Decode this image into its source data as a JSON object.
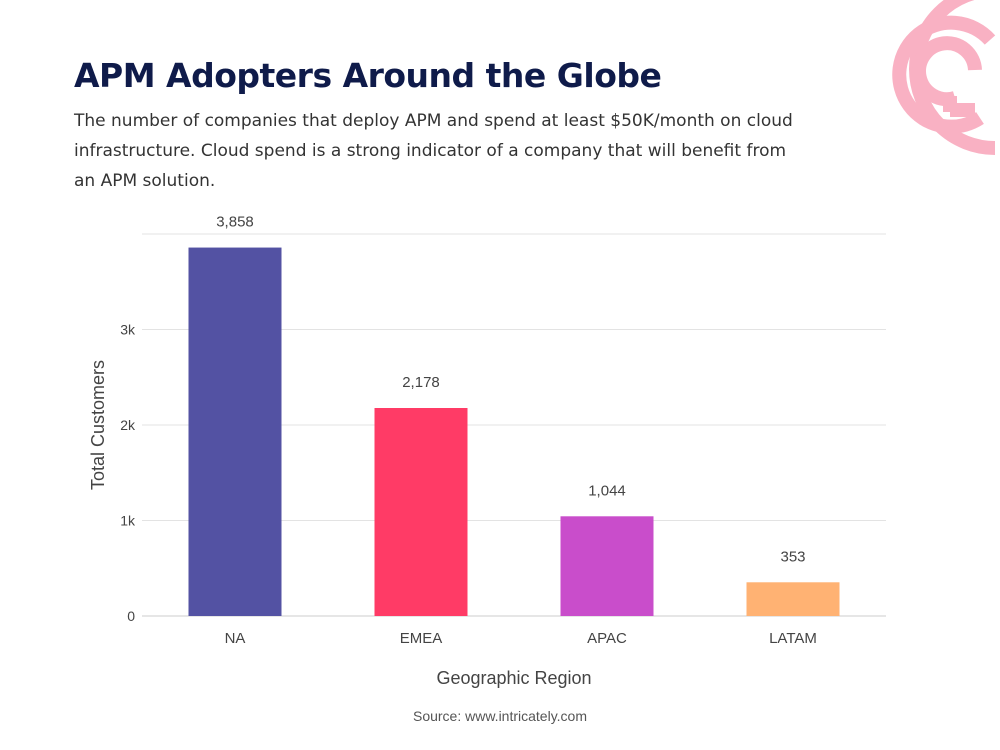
{
  "header": {
    "title": "APM Adopters Around the Globe",
    "subtitle": "The number of companies that deploy APM and spend at least $50K/month on cloud infrastructure. Cloud spend is a strong indicator of a company that will benefit from an APM solution."
  },
  "logo": {
    "icon": "pink-concentric-circles-logo",
    "color": "#f9b1c3"
  },
  "footer": {
    "source": "Source: www.intricately.com"
  },
  "chart_data": {
    "type": "bar",
    "title": "APM Adopters Around the Globe",
    "xlabel": "Geographic Region",
    "ylabel": "Total Customers",
    "ylim": [
      0,
      4000
    ],
    "yticks": [
      0,
      1000,
      2000,
      3000
    ],
    "ytick_labels": [
      "0",
      "1k",
      "2k",
      "3k"
    ],
    "grid": true,
    "categories": [
      "NA",
      "EMEA",
      "APAC",
      "LATAM"
    ],
    "values": [
      3858,
      2178,
      1044,
      353
    ],
    "value_labels": [
      "3,858",
      "2,178",
      "1,044",
      "353"
    ],
    "colors": [
      "#5352a3",
      "#ff3b66",
      "#c94dcb",
      "#ffb273"
    ]
  }
}
